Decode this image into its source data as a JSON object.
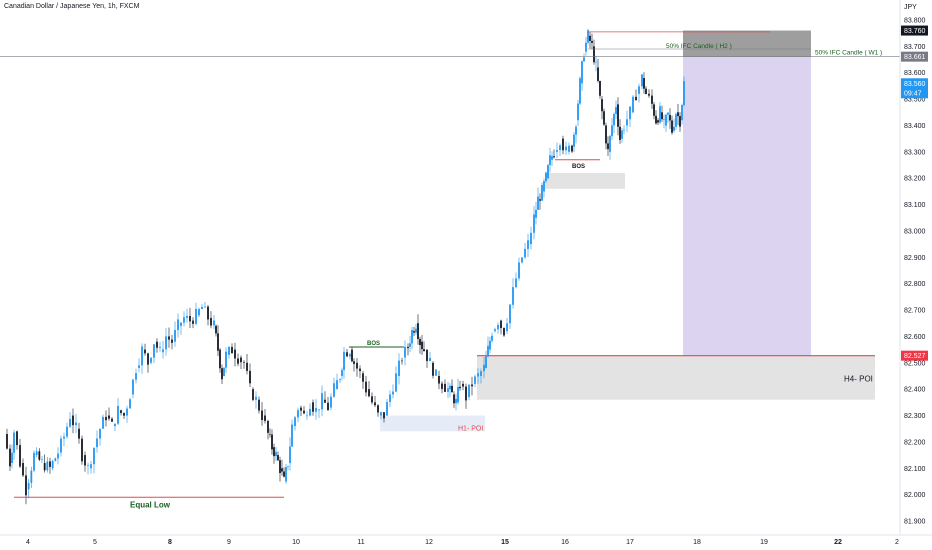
{
  "header": {
    "title": "Canadian Dollar / Japanese Yen, 1h, FXCM"
  },
  "currency": "JPY",
  "colors": {
    "up": "#2196f3",
    "down": "#131722",
    "red_line": "#e5484d",
    "green_text": "#1b5e20",
    "zone_gray": "#e3e3e3",
    "purple": "#dcd3f1",
    "dark_zone": "#9e9e9e",
    "price_blue": "#2196f3"
  },
  "price_labels": {
    "top": "83.760",
    "mid": "83.661",
    "current": "83.560",
    "countdown": "09:47",
    "poi": "82.527"
  },
  "chart_data": {
    "type": "candlestick",
    "title": "Canadian Dollar / Japanese Yen, 1h, FXCM",
    "ylim": [
      81.9,
      83.8
    ],
    "y_ticks": [
      "83.800",
      "83.700",
      "83.600",
      "83.500",
      "83.400",
      "83.300",
      "83.200",
      "83.100",
      "83.000",
      "82.900",
      "82.800",
      "82.700",
      "82.600",
      "82.500",
      "82.400",
      "82.300",
      "82.200",
      "82.100",
      "82.000",
      "81.900"
    ],
    "x_ticks": [
      "4",
      "5",
      "8",
      "9",
      "10",
      "11",
      "12",
      "15",
      "16",
      "17",
      "18",
      "19",
      "22",
      "2"
    ],
    "x_ticks_bold": [
      "8",
      "15",
      "22"
    ],
    "annotations": {
      "equal_low": "Equal Low",
      "bos_left": "BOS",
      "bos_right": "BOS",
      "h1_poi": "H1- POI",
      "h4_poi": "H4- POI",
      "ifc_h2": "50% IFC Candle ( H2 )",
      "ifc_w1": "50% IFC Candle ( W1 )"
    },
    "levels": {
      "equal_low": 81.99,
      "h4_top": 82.527,
      "h4_bottom": 82.36,
      "h1_top": 82.3,
      "h1_bottom": 82.24,
      "bos_left": 82.56,
      "bos_right": 83.27,
      "ifc_w1": 83.661,
      "ifc_h2": 83.69,
      "top_line": 83.755,
      "gray_zone_top": 83.22,
      "gray_zone_bottom": 83.16
    },
    "path": [
      [
        0,
        82.23
      ],
      [
        6,
        82.12
      ],
      [
        10,
        82.24
      ],
      [
        16,
        82.12
      ],
      [
        22,
        82.02
      ],
      [
        30,
        82.15
      ],
      [
        38,
        82.12
      ],
      [
        46,
        82.1
      ],
      [
        54,
        82.16
      ],
      [
        60,
        82.22
      ],
      [
        66,
        82.3
      ],
      [
        72,
        82.25
      ],
      [
        78,
        82.15
      ],
      [
        84,
        82.1
      ],
      [
        90,
        82.18
      ],
      [
        96,
        82.25
      ],
      [
        102,
        82.3
      ],
      [
        108,
        82.26
      ],
      [
        114,
        82.32
      ],
      [
        120,
        82.3
      ],
      [
        126,
        82.38
      ],
      [
        132,
        82.48
      ],
      [
        138,
        82.55
      ],
      [
        144,
        82.5
      ],
      [
        150,
        82.58
      ],
      [
        156,
        82.54
      ],
      [
        162,
        82.6
      ],
      [
        168,
        82.58
      ],
      [
        174,
        82.64
      ],
      [
        180,
        82.67
      ],
      [
        186,
        82.66
      ],
      [
        192,
        82.68
      ],
      [
        198,
        82.71
      ],
      [
        204,
        82.67
      ],
      [
        210,
        82.64
      ],
      [
        214,
        82.55
      ],
      [
        218,
        82.45
      ],
      [
        222,
        82.53
      ],
      [
        228,
        82.55
      ],
      [
        234,
        82.52
      ],
      [
        240,
        82.5
      ],
      [
        246,
        82.4
      ],
      [
        252,
        82.36
      ],
      [
        258,
        82.3
      ],
      [
        264,
        82.23
      ],
      [
        268,
        82.18
      ],
      [
        272,
        82.15
      ],
      [
        276,
        82.1
      ],
      [
        280,
        82.05
      ],
      [
        284,
        82.12
      ],
      [
        288,
        82.26
      ],
      [
        294,
        82.33
      ],
      [
        300,
        82.3
      ],
      [
        306,
        82.35
      ],
      [
        312,
        82.32
      ],
      [
        318,
        82.36
      ],
      [
        324,
        82.33
      ],
      [
        330,
        82.4
      ],
      [
        336,
        82.45
      ],
      [
        340,
        82.54
      ],
      [
        346,
        82.55
      ],
      [
        350,
        82.5
      ],
      [
        356,
        82.46
      ],
      [
        362,
        82.4
      ],
      [
        368,
        82.35
      ],
      [
        374,
        82.3
      ],
      [
        380,
        82.3
      ],
      [
        386,
        82.38
      ],
      [
        392,
        82.45
      ],
      [
        398,
        82.52
      ],
      [
        404,
        82.56
      ],
      [
        408,
        82.62
      ],
      [
        412,
        82.65
      ],
      [
        416,
        82.58
      ],
      [
        420,
        82.55
      ],
      [
        426,
        82.5
      ],
      [
        432,
        82.45
      ],
      [
        438,
        82.42
      ],
      [
        444,
        82.4
      ],
      [
        448,
        82.38
      ],
      [
        452,
        82.35
      ],
      [
        456,
        82.42
      ],
      [
        462,
        82.37
      ],
      [
        468,
        82.42
      ],
      [
        474,
        82.45
      ],
      [
        480,
        82.48
      ],
      [
        484,
        82.55
      ],
      [
        488,
        82.62
      ],
      [
        494,
        82.66
      ],
      [
        500,
        82.62
      ],
      [
        506,
        82.72
      ],
      [
        512,
        82.82
      ],
      [
        518,
        82.9
      ],
      [
        524,
        82.95
      ],
      [
        530,
        83.05
      ],
      [
        534,
        83.12
      ],
      [
        538,
        83.15
      ],
      [
        542,
        83.2
      ],
      [
        546,
        83.27
      ],
      [
        550,
        83.3
      ],
      [
        556,
        83.35
      ],
      [
        562,
        83.3
      ],
      [
        568,
        83.32
      ],
      [
        572,
        83.42
      ],
      [
        576,
        83.56
      ],
      [
        580,
        83.68
      ],
      [
        584,
        83.74
      ],
      [
        588,
        83.7
      ],
      [
        592,
        83.62
      ],
      [
        596,
        83.5
      ],
      [
        600,
        83.4
      ],
      [
        604,
        83.3
      ],
      [
        608,
        83.4
      ],
      [
        612,
        83.48
      ],
      [
        616,
        83.35
      ],
      [
        620,
        83.4
      ],
      [
        626,
        83.45
      ],
      [
        632,
        83.52
      ],
      [
        638,
        83.58
      ],
      [
        642,
        83.52
      ],
      [
        648,
        83.48
      ],
      [
        652,
        83.42
      ],
      [
        656,
        83.45
      ],
      [
        660,
        83.4
      ],
      [
        664,
        83.44
      ],
      [
        668,
        83.38
      ],
      [
        672,
        83.45
      ],
      [
        676,
        83.42
      ],
      [
        680,
        83.56
      ]
    ]
  }
}
